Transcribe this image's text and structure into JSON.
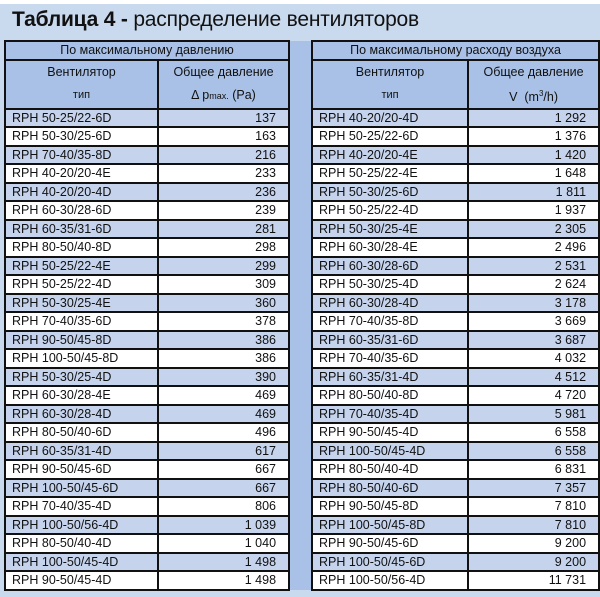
{
  "title_bold": "Таблица 4 -",
  "title_rest": "распределение вентиляторов",
  "left": {
    "group_header": "По максимальному давлению",
    "col1_line1": "Вентилятор",
    "col1_line2": "тип",
    "col2_line1": "Общее давление",
    "col2_line2_symbol": "Δ p",
    "col2_line2_sub": "max.",
    "col2_line2_unit": "(Pa)",
    "rows": [
      [
        "RPH 50-25/22-6D",
        "137"
      ],
      [
        "RPH 50-30/25-6D",
        "163"
      ],
      [
        "RPH 70-40/35-8D",
        "216"
      ],
      [
        "RPH 40-20/20-4E",
        "233"
      ],
      [
        "RPH 40-20/20-4D",
        "236"
      ],
      [
        "RPH 60-30/28-6D",
        "239"
      ],
      [
        "RPH 60-35/31-6D",
        "281"
      ],
      [
        "RPH 80-50/40-8D",
        "298"
      ],
      [
        "RPH 50-25/22-4E",
        "299"
      ],
      [
        "RPH 50-25/22-4D",
        "309"
      ],
      [
        "RPH 50-30/25-4E",
        "360"
      ],
      [
        "RPH 70-40/35-6D",
        "378"
      ],
      [
        "RPH 90-50/45-8D",
        "386"
      ],
      [
        "RPH 100-50/45-8D",
        "386"
      ],
      [
        "RPH 50-30/25-4D",
        "390"
      ],
      [
        "RPH 60-30/28-4E",
        "469"
      ],
      [
        "RPH 60-30/28-4D",
        "469"
      ],
      [
        "RPH 80-50/40-6D",
        "496"
      ],
      [
        "RPH 60-35/31-4D",
        "617"
      ],
      [
        "RPH 90-50/45-6D",
        "667"
      ],
      [
        "RPH 100-50/45-6D",
        "667"
      ],
      [
        "RPH 70-40/35-4D",
        "806"
      ],
      [
        "RPH 100-50/56-4D",
        "1 039"
      ],
      [
        "RPH 80-50/40-4D",
        "1 040"
      ],
      [
        "RPH 100-50/45-4D",
        "1 498"
      ],
      [
        "RPH 90-50/45-4D",
        "1 498"
      ]
    ]
  },
  "right": {
    "group_header": "По максимальному расходу воздуха",
    "col1_line1": "Вентилятор",
    "col1_line2": "тип",
    "col2_line1": "Общее давление",
    "col2_line2_symbol": "V",
    "col2_line2_unit_a": "(m",
    "col2_line2_sup": "3",
    "col2_line2_unit_b": "/h)",
    "rows": [
      [
        "RPH 40-20/20-4D",
        "1 292"
      ],
      [
        "RPH 50-25/22-6D",
        "1 376"
      ],
      [
        "RPH 40-20/20-4E",
        "1 420"
      ],
      [
        "RPH 50-25/22-4E",
        "1 648"
      ],
      [
        "RPH 50-30/25-6D",
        "1 811"
      ],
      [
        "RPH 50-25/22-4D",
        "1 937"
      ],
      [
        "RPH 50-30/25-4E",
        "2 305"
      ],
      [
        "RPH 60-30/28-4E",
        "2 496"
      ],
      [
        "RPH 60-30/28-6D",
        "2 531"
      ],
      [
        "RPH 50-30/25-4D",
        "2 624"
      ],
      [
        "RPH 60-30/28-4D",
        "3 178"
      ],
      [
        "RPH 70-40/35-8D",
        "3 669"
      ],
      [
        "RPH 60-35/31-6D",
        "3 687"
      ],
      [
        "RPH 70-40/35-6D",
        "4 032"
      ],
      [
        "RPH 60-35/31-4D",
        "4 512"
      ],
      [
        "RPH 80-50/40-8D",
        "4 720"
      ],
      [
        "RPH 70-40/35-4D",
        "5 981"
      ],
      [
        "RPH 90-50/45-4D",
        "6 558"
      ],
      [
        "RPH 100-50/45-4D",
        "6 558"
      ],
      [
        "RPH 80-50/40-4D",
        "6 831"
      ],
      [
        "RPH 80-50/40-6D",
        "7 357"
      ],
      [
        "RPH 90-50/45-8D",
        "7 810"
      ],
      [
        "RPH 100-50/45-8D",
        "7 810"
      ],
      [
        "RPH 90-50/45-6D",
        "9 200"
      ],
      [
        "RPH 100-50/45-6D",
        "9 200"
      ],
      [
        "RPH 100-50/56-4D",
        "11 731"
      ]
    ]
  },
  "colors": {
    "background": "#c9d9ee",
    "header": "#a9c1e6",
    "row_blue": "#c5d3ec",
    "row_white": "#ffffff",
    "separator": "#bdbdbd"
  }
}
